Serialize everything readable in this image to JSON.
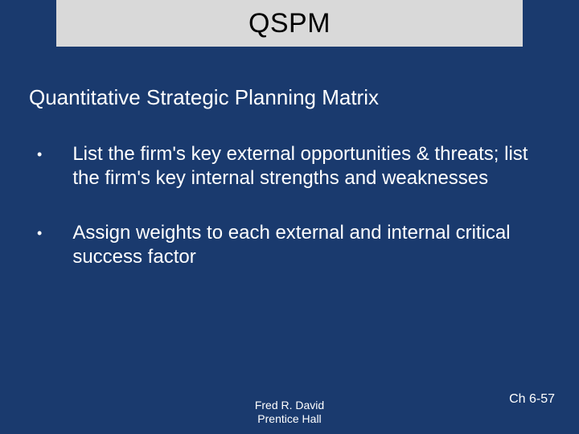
{
  "slide": {
    "background_color": "#1a3a6e",
    "title_bar_color": "#d9d9d9",
    "text_color": "#ffffff",
    "title_text_color": "#000000",
    "title": "QSPM",
    "title_fontsize": 34,
    "subtitle": "Quantitative Strategic Planning Matrix",
    "subtitle_fontsize": 26,
    "bullets": [
      "List the firm's key external opportunities & threats; list the firm's key internal strengths and weaknesses",
      "Assign weights to each external and internal critical success factor"
    ],
    "bullet_fontsize": 24,
    "footer_author": "Fred R. David",
    "footer_publisher": "Prentice Hall",
    "footer_page": "Ch 6-57",
    "footer_fontsize": 14
  }
}
